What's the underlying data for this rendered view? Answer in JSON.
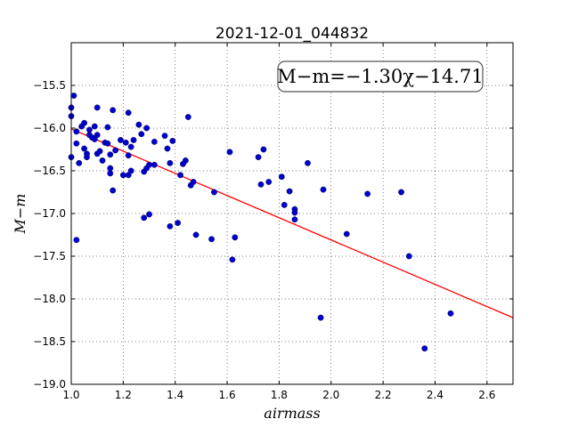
{
  "chart_data": {
    "type": "scatter",
    "title": "2021-12-01_044832",
    "xlabel": "airmass",
    "ylabel": "M−m",
    "xlim": [
      1.0,
      2.7
    ],
    "ylim": [
      -19.0,
      -15.0
    ],
    "y_inverted": true,
    "grid": true,
    "x_ticks": [
      1.0,
      1.2,
      1.4,
      1.6,
      1.8,
      2.0,
      2.2,
      2.4,
      2.6
    ],
    "x_tick_labels": [
      "1.0",
      "1.2",
      "1.4",
      "1.6",
      "1.8",
      "2.0",
      "2.2",
      "2.4",
      "2.6"
    ],
    "y_ticks": [
      -15.5,
      -16.0,
      -16.5,
      -17.0,
      -17.5,
      -18.0,
      -18.5,
      -19.0
    ],
    "y_tick_labels": [
      "−15.5",
      "−16.0",
      "−16.5",
      "−17.0",
      "−17.5",
      "−18.0",
      "−18.5",
      "−19.0"
    ],
    "annotation": "M−m=−1.30χ−14.71",
    "annotation_position": "top-right",
    "fit": {
      "slope": -1.3,
      "intercept": -14.71,
      "color": "#ff0000"
    },
    "marker_color": "#0000cc",
    "points": [
      {
        "x": 1.0,
        "y": -15.76
      },
      {
        "x": 1.0,
        "y": -15.86
      },
      {
        "x": 1.0,
        "y": -16.34
      },
      {
        "x": 1.01,
        "y": -15.62
      },
      {
        "x": 1.02,
        "y": -16.04
      },
      {
        "x": 1.02,
        "y": -16.18
      },
      {
        "x": 1.02,
        "y": -17.31
      },
      {
        "x": 1.03,
        "y": -16.41
      },
      {
        "x": 1.04,
        "y": -15.98
      },
      {
        "x": 1.05,
        "y": -15.94
      },
      {
        "x": 1.05,
        "y": -16.24
      },
      {
        "x": 1.06,
        "y": -16.34
      },
      {
        "x": 1.06,
        "y": -16.3
      },
      {
        "x": 1.07,
        "y": -16.08
      },
      {
        "x": 1.07,
        "y": -16.02
      },
      {
        "x": 1.08,
        "y": -16.11
      },
      {
        "x": 1.09,
        "y": -15.98
      },
      {
        "x": 1.09,
        "y": -16.13
      },
      {
        "x": 1.1,
        "y": -16.3
      },
      {
        "x": 1.1,
        "y": -16.08
      },
      {
        "x": 1.1,
        "y": -15.76
      },
      {
        "x": 1.11,
        "y": -16.27
      },
      {
        "x": 1.12,
        "y": -16.38
      },
      {
        "x": 1.13,
        "y": -16.17
      },
      {
        "x": 1.14,
        "y": -15.99
      },
      {
        "x": 1.14,
        "y": -16.18
      },
      {
        "x": 1.15,
        "y": -16.47
      },
      {
        "x": 1.15,
        "y": -16.31
      },
      {
        "x": 1.15,
        "y": -16.53
      },
      {
        "x": 1.16,
        "y": -16.73
      },
      {
        "x": 1.16,
        "y": -15.79
      },
      {
        "x": 1.17,
        "y": -16.26
      },
      {
        "x": 1.19,
        "y": -16.14
      },
      {
        "x": 1.2,
        "y": -16.55
      },
      {
        "x": 1.21,
        "y": -16.17
      },
      {
        "x": 1.22,
        "y": -16.32
      },
      {
        "x": 1.22,
        "y": -16.55
      },
      {
        "x": 1.22,
        "y": -15.82
      },
      {
        "x": 1.23,
        "y": -16.5
      },
      {
        "x": 1.23,
        "y": -16.22
      },
      {
        "x": 1.24,
        "y": -16.14
      },
      {
        "x": 1.26,
        "y": -15.96
      },
      {
        "x": 1.27,
        "y": -16.07
      },
      {
        "x": 1.28,
        "y": -16.51
      },
      {
        "x": 1.28,
        "y": -17.05
      },
      {
        "x": 1.29,
        "y": -16.47
      },
      {
        "x": 1.29,
        "y": -16.0
      },
      {
        "x": 1.3,
        "y": -17.01
      },
      {
        "x": 1.3,
        "y": -16.43
      },
      {
        "x": 1.32,
        "y": -16.43
      },
      {
        "x": 1.32,
        "y": -16.16
      },
      {
        "x": 1.36,
        "y": -16.09
      },
      {
        "x": 1.37,
        "y": -16.24
      },
      {
        "x": 1.38,
        "y": -16.41
      },
      {
        "x": 1.38,
        "y": -17.15
      },
      {
        "x": 1.39,
        "y": -16.15
      },
      {
        "x": 1.41,
        "y": -17.11
      },
      {
        "x": 1.42,
        "y": -16.55
      },
      {
        "x": 1.43,
        "y": -16.42
      },
      {
        "x": 1.44,
        "y": -16.38
      },
      {
        "x": 1.45,
        "y": -15.87
      },
      {
        "x": 1.46,
        "y": -16.67
      },
      {
        "x": 1.47,
        "y": -16.63
      },
      {
        "x": 1.48,
        "y": -17.25
      },
      {
        "x": 1.54,
        "y": -17.3
      },
      {
        "x": 1.55,
        "y": -16.75
      },
      {
        "x": 1.61,
        "y": -16.28
      },
      {
        "x": 1.62,
        "y": -17.54
      },
      {
        "x": 1.63,
        "y": -17.28
      },
      {
        "x": 1.72,
        "y": -16.34
      },
      {
        "x": 1.73,
        "y": -16.66
      },
      {
        "x": 1.74,
        "y": -16.25
      },
      {
        "x": 1.76,
        "y": -16.63
      },
      {
        "x": 1.81,
        "y": -16.57
      },
      {
        "x": 1.82,
        "y": -16.9
      },
      {
        "x": 1.84,
        "y": -16.74
      },
      {
        "x": 1.86,
        "y": -16.95
      },
      {
        "x": 1.86,
        "y": -16.99
      },
      {
        "x": 1.86,
        "y": -17.07
      },
      {
        "x": 1.91,
        "y": -16.41
      },
      {
        "x": 1.96,
        "y": -18.22
      },
      {
        "x": 1.97,
        "y": -16.72
      },
      {
        "x": 2.06,
        "y": -17.24
      },
      {
        "x": 2.14,
        "y": -16.77
      },
      {
        "x": 2.27,
        "y": -16.75
      },
      {
        "x": 2.3,
        "y": -17.5
      },
      {
        "x": 2.36,
        "y": -18.58
      },
      {
        "x": 2.46,
        "y": -18.17
      }
    ]
  }
}
